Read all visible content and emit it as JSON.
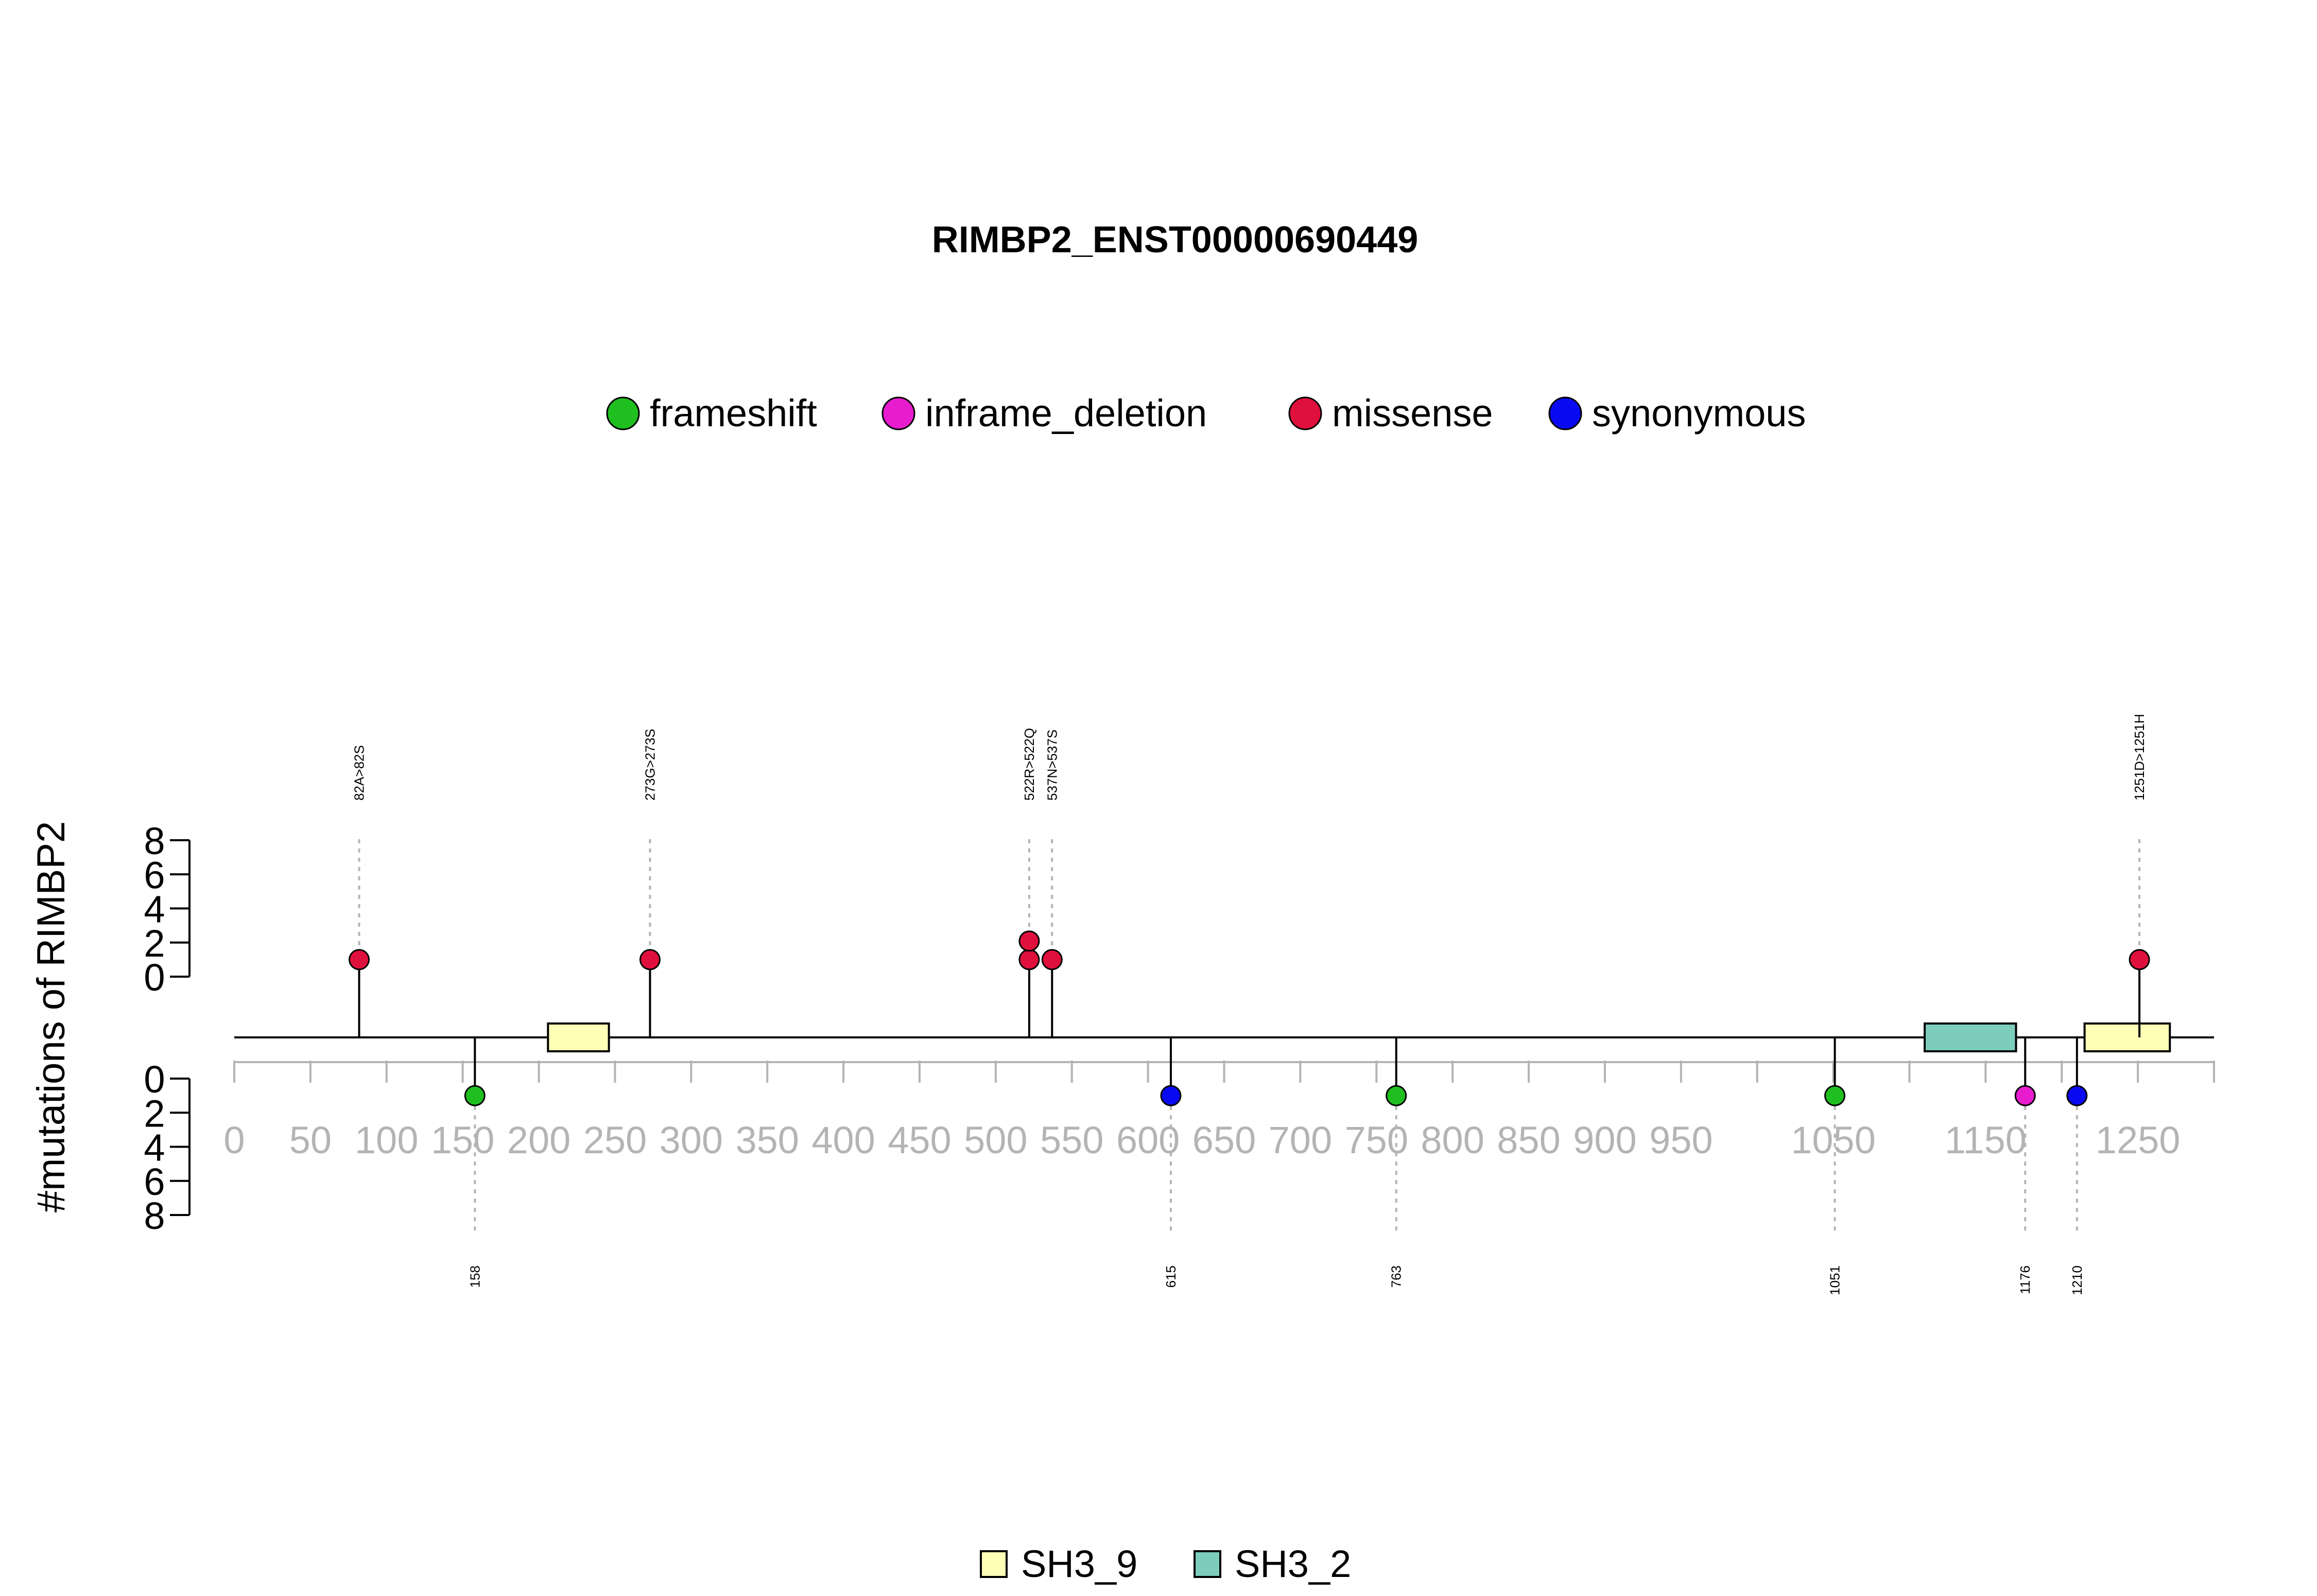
{
  "chart_data": {
    "type": "lollipop",
    "title": "RIMBP2_ENST00000690449",
    "ylabel": "#mutations of RIMBP2",
    "xlim": [
      0,
      1300
    ],
    "x_ticks": [
      0,
      50,
      100,
      150,
      200,
      250,
      300,
      350,
      400,
      450,
      500,
      550,
      600,
      650,
      700,
      750,
      800,
      850,
      900,
      950,
      1050,
      1150,
      1250
    ],
    "x_tick_marks": [
      0,
      50,
      100,
      150,
      200,
      250,
      300,
      350,
      400,
      450,
      500,
      550,
      600,
      650,
      700,
      750,
      800,
      850,
      900,
      950,
      1000,
      1050,
      1100,
      1150,
      1200,
      1250,
      1300
    ],
    "y_ticks": [
      0,
      2,
      4,
      6,
      8
    ],
    "legend": [
      {
        "name": "frameshift",
        "color": "#1fbf1f"
      },
      {
        "name": "inframe_deletion",
        "color": "#e81ccf"
      },
      {
        "name": "missense",
        "color": "#e0103d"
      },
      {
        "name": "synonymous",
        "color": "#0a0af2"
      }
    ],
    "domain_legend": [
      {
        "name": "SH3_9",
        "color": "#ffffb8"
      },
      {
        "name": "SH3_2",
        "color": "#7ccdbb"
      }
    ],
    "domains": [
      {
        "name": "SH3_9",
        "start": 206,
        "end": 246,
        "color": "#ffffb8"
      },
      {
        "name": "SH3_2",
        "start": 1110,
        "end": 1170,
        "color": "#7ccdbb"
      },
      {
        "name": "SH3_9",
        "start": 1215,
        "end": 1271,
        "color": "#ffffb8"
      }
    ],
    "mutations_top": [
      {
        "pos": 82,
        "label": "82A>82S",
        "type": "missense",
        "count": 1
      },
      {
        "pos": 273,
        "label": "273G>273S",
        "type": "missense",
        "count": 1
      },
      {
        "pos": 522,
        "label": "522R>522Q",
        "type": "missense",
        "count": 2
      },
      {
        "pos": 537,
        "label": "537N>537S",
        "type": "missense",
        "count": 1
      },
      {
        "pos": 1251,
        "label": "1251D>1251H",
        "type": "missense",
        "count": 1
      }
    ],
    "mutations_bottom": [
      {
        "pos": 158,
        "label": "158",
        "type": "frameshift",
        "count": 1
      },
      {
        "pos": 615,
        "label": "615",
        "type": "synonymous",
        "count": 1
      },
      {
        "pos": 763,
        "label": "763",
        "type": "frameshift",
        "count": 1
      },
      {
        "pos": 1051,
        "label": "1051",
        "type": "frameshift",
        "count": 1
      },
      {
        "pos": 1176,
        "label": "1176",
        "type": "inframe_deletion",
        "count": 1
      },
      {
        "pos": 1210,
        "label": "1210",
        "type": "synonymous",
        "count": 1
      }
    ]
  }
}
